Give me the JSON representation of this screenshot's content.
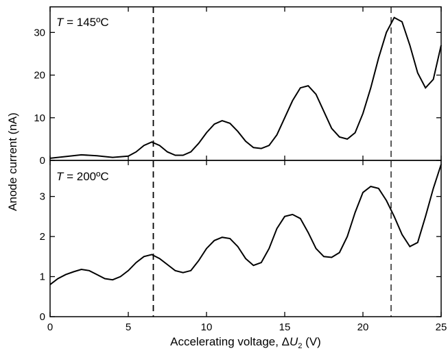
{
  "chart_data": [
    {
      "type": "line",
      "panel": "top",
      "annotation": {
        "symbol": "T",
        "value": " = 145ºC"
      },
      "xlim": [
        0,
        25
      ],
      "ylim": [
        0,
        36
      ],
      "yticks": [
        0,
        10,
        20,
        30
      ],
      "series": [
        {
          "x": [
            0,
            1,
            2,
            3,
            4,
            5,
            5.5,
            6,
            6.5,
            7,
            7.5,
            8,
            8.5,
            9,
            9.5,
            10,
            10.5,
            11,
            11.5,
            12,
            12.5,
            13,
            13.5,
            14,
            14.5,
            15,
            15.5,
            16,
            16.5,
            17,
            17.5,
            18,
            18.5,
            19,
            19.5,
            20,
            20.5,
            21,
            21.5,
            22,
            22.5,
            23,
            23.5,
            24,
            24.5,
            25
          ],
          "y": [
            0.5,
            0.9,
            1.3,
            1.1,
            0.7,
            1.0,
            2.0,
            3.5,
            4.3,
            3.5,
            2.0,
            1.2,
            1.2,
            2.0,
            4.0,
            6.5,
            8.5,
            9.3,
            8.7,
            6.8,
            4.5,
            3.0,
            2.8,
            3.5,
            6.0,
            10.0,
            14.0,
            17.0,
            17.5,
            15.5,
            11.5,
            7.5,
            5.5,
            5.0,
            6.5,
            11.0,
            17.0,
            24.0,
            30.0,
            33.5,
            32.5,
            27.0,
            20.5,
            17.0,
            19.0,
            27.0
          ]
        }
      ]
    },
    {
      "type": "line",
      "panel": "bottom",
      "annotation": {
        "symbol": "T",
        "value": " = 200ºC"
      },
      "xlabel": {
        "main": "Accelerating voltage, Δ",
        "var": "U",
        "sub": "2",
        "unit": " (V)"
      },
      "xlim": [
        0,
        25
      ],
      "ylim": [
        0,
        3.9
      ],
      "xticks": [
        0,
        5,
        10,
        15,
        20,
        25
      ],
      "yticks": [
        0,
        1,
        2,
        3
      ],
      "series": [
        {
          "x": [
            0,
            0.5,
            1,
            1.5,
            2,
            2.5,
            3,
            3.5,
            4,
            4.5,
            5,
            5.5,
            6,
            6.5,
            7,
            7.5,
            8,
            8.5,
            9,
            9.5,
            10,
            10.5,
            11,
            11.5,
            12,
            12.5,
            13,
            13.5,
            14,
            14.5,
            15,
            15.5,
            16,
            16.5,
            17,
            17.5,
            18,
            18.5,
            19,
            19.5,
            20,
            20.5,
            21,
            21.5,
            22,
            22.5,
            23,
            23.5,
            24,
            24.5,
            25
          ],
          "y": [
            0.8,
            0.95,
            1.05,
            1.12,
            1.18,
            1.15,
            1.05,
            0.95,
            0.92,
            1.0,
            1.15,
            1.35,
            1.5,
            1.55,
            1.45,
            1.3,
            1.15,
            1.1,
            1.15,
            1.4,
            1.7,
            1.9,
            1.98,
            1.95,
            1.75,
            1.45,
            1.28,
            1.35,
            1.7,
            2.2,
            2.5,
            2.55,
            2.45,
            2.1,
            1.7,
            1.5,
            1.48,
            1.6,
            2.0,
            2.6,
            3.1,
            3.25,
            3.2,
            2.9,
            2.5,
            2.05,
            1.75,
            1.85,
            2.5,
            3.2,
            3.8
          ]
        }
      ]
    }
  ],
  "shared": {
    "ylabel": "Anode current (nA)",
    "top_unit_label": "(nA)",
    "dashed_lines_x": [
      6.6,
      21.8
    ]
  }
}
